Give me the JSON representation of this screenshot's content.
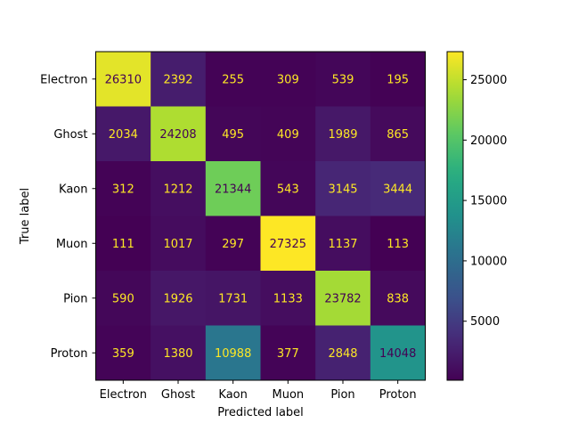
{
  "chart_data": {
    "type": "heatmap",
    "title": "",
    "xlabel": "Predicted label",
    "ylabel": "True label",
    "x_categories": [
      "Electron",
      "Ghost",
      "Kaon",
      "Muon",
      "Pion",
      "Proton"
    ],
    "y_categories": [
      "Electron",
      "Ghost",
      "Kaon",
      "Muon",
      "Pion",
      "Proton"
    ],
    "values": [
      [
        26310,
        2392,
        255,
        309,
        539,
        195
      ],
      [
        2034,
        24208,
        495,
        409,
        1989,
        865
      ],
      [
        312,
        1212,
        21344,
        543,
        3145,
        3444
      ],
      [
        111,
        1017,
        297,
        27325,
        1137,
        113
      ],
      [
        590,
        1926,
        1731,
        1133,
        23782,
        838
      ],
      [
        359,
        1380,
        10988,
        377,
        2848,
        14048
      ]
    ],
    "colormap": "viridis",
    "value_range": [
      111,
      27325
    ],
    "colorbar_ticks": [
      5000,
      10000,
      15000,
      20000,
      25000
    ],
    "colorbar_tick_labels": [
      "5000",
      "10000",
      "15000",
      "20000",
      "25000"
    ],
    "text_color_low": "#fde725",
    "text_color_high": "#440154"
  }
}
